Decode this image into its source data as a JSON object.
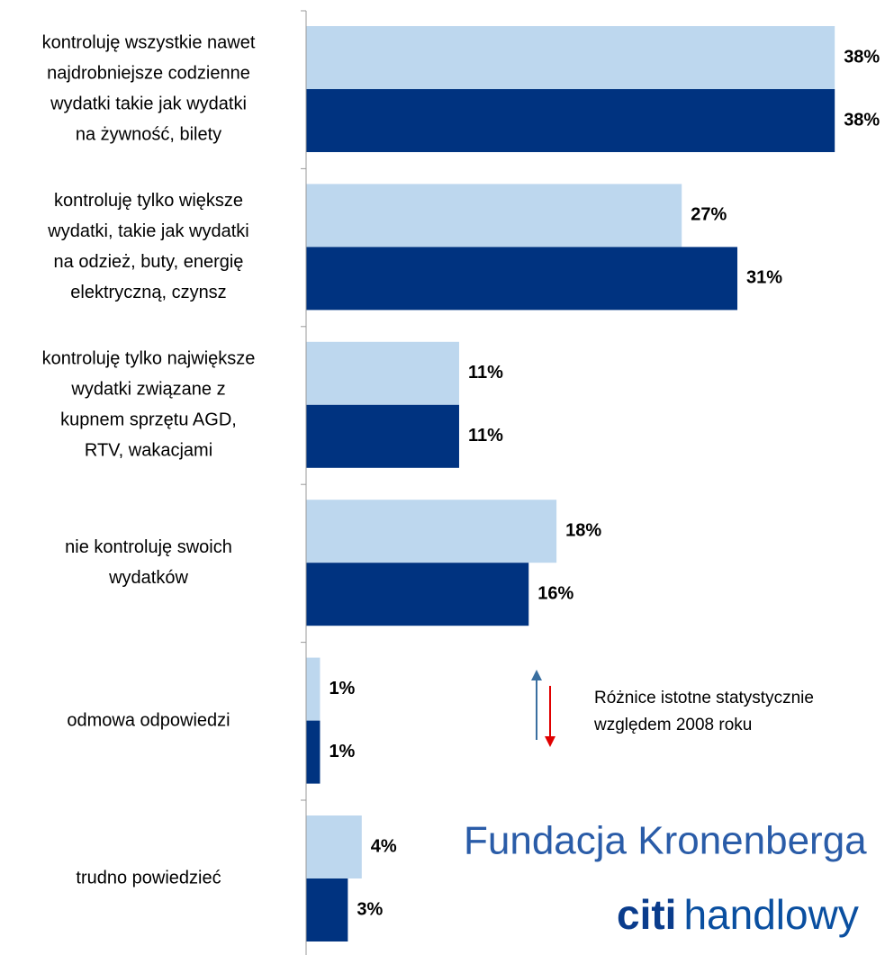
{
  "chart_data": {
    "type": "barh",
    "categories": [
      [
        "kontroluję wszystkie nawet",
        "najdrobniejsze codzienne",
        "wydatki takie jak wydatki",
        "na żywność, bilety"
      ],
      [
        "kontroluję tylko większe",
        "wydatki, takie jak wydatki",
        "na odzież, buty, energię",
        "elektryczną, czynsz"
      ],
      [
        "kontroluję tylko największe",
        "wydatki związane z",
        "kupnem sprzętu AGD,",
        "RTV, wakacjami"
      ],
      [
        "nie kontroluję swoich",
        "wydatków"
      ],
      [
        "odmowa odpowiedzi"
      ],
      [
        "trudno powiedzieć"
      ]
    ],
    "series": [
      {
        "color": "#bdd7ee",
        "values": [
          38,
          27,
          11,
          18,
          1,
          4
        ],
        "value_labels": [
          "38%",
          "27%",
          "11%",
          "18%",
          "1%",
          "4%"
        ]
      },
      {
        "color": "#003380",
        "values": [
          38,
          31,
          11,
          16,
          1,
          3
        ],
        "value_labels": [
          "38%",
          "31%",
          "11%",
          "16%",
          "1%",
          "3%"
        ]
      }
    ],
    "xlim": [
      0,
      42
    ],
    "annotation": [
      "Różnice istotne statystycznie",
      "względem 2008 roku"
    ],
    "logos": {
      "foundation": "Fundacja Kronenberga",
      "bank": [
        "citi",
        "handlowy"
      ]
    }
  }
}
